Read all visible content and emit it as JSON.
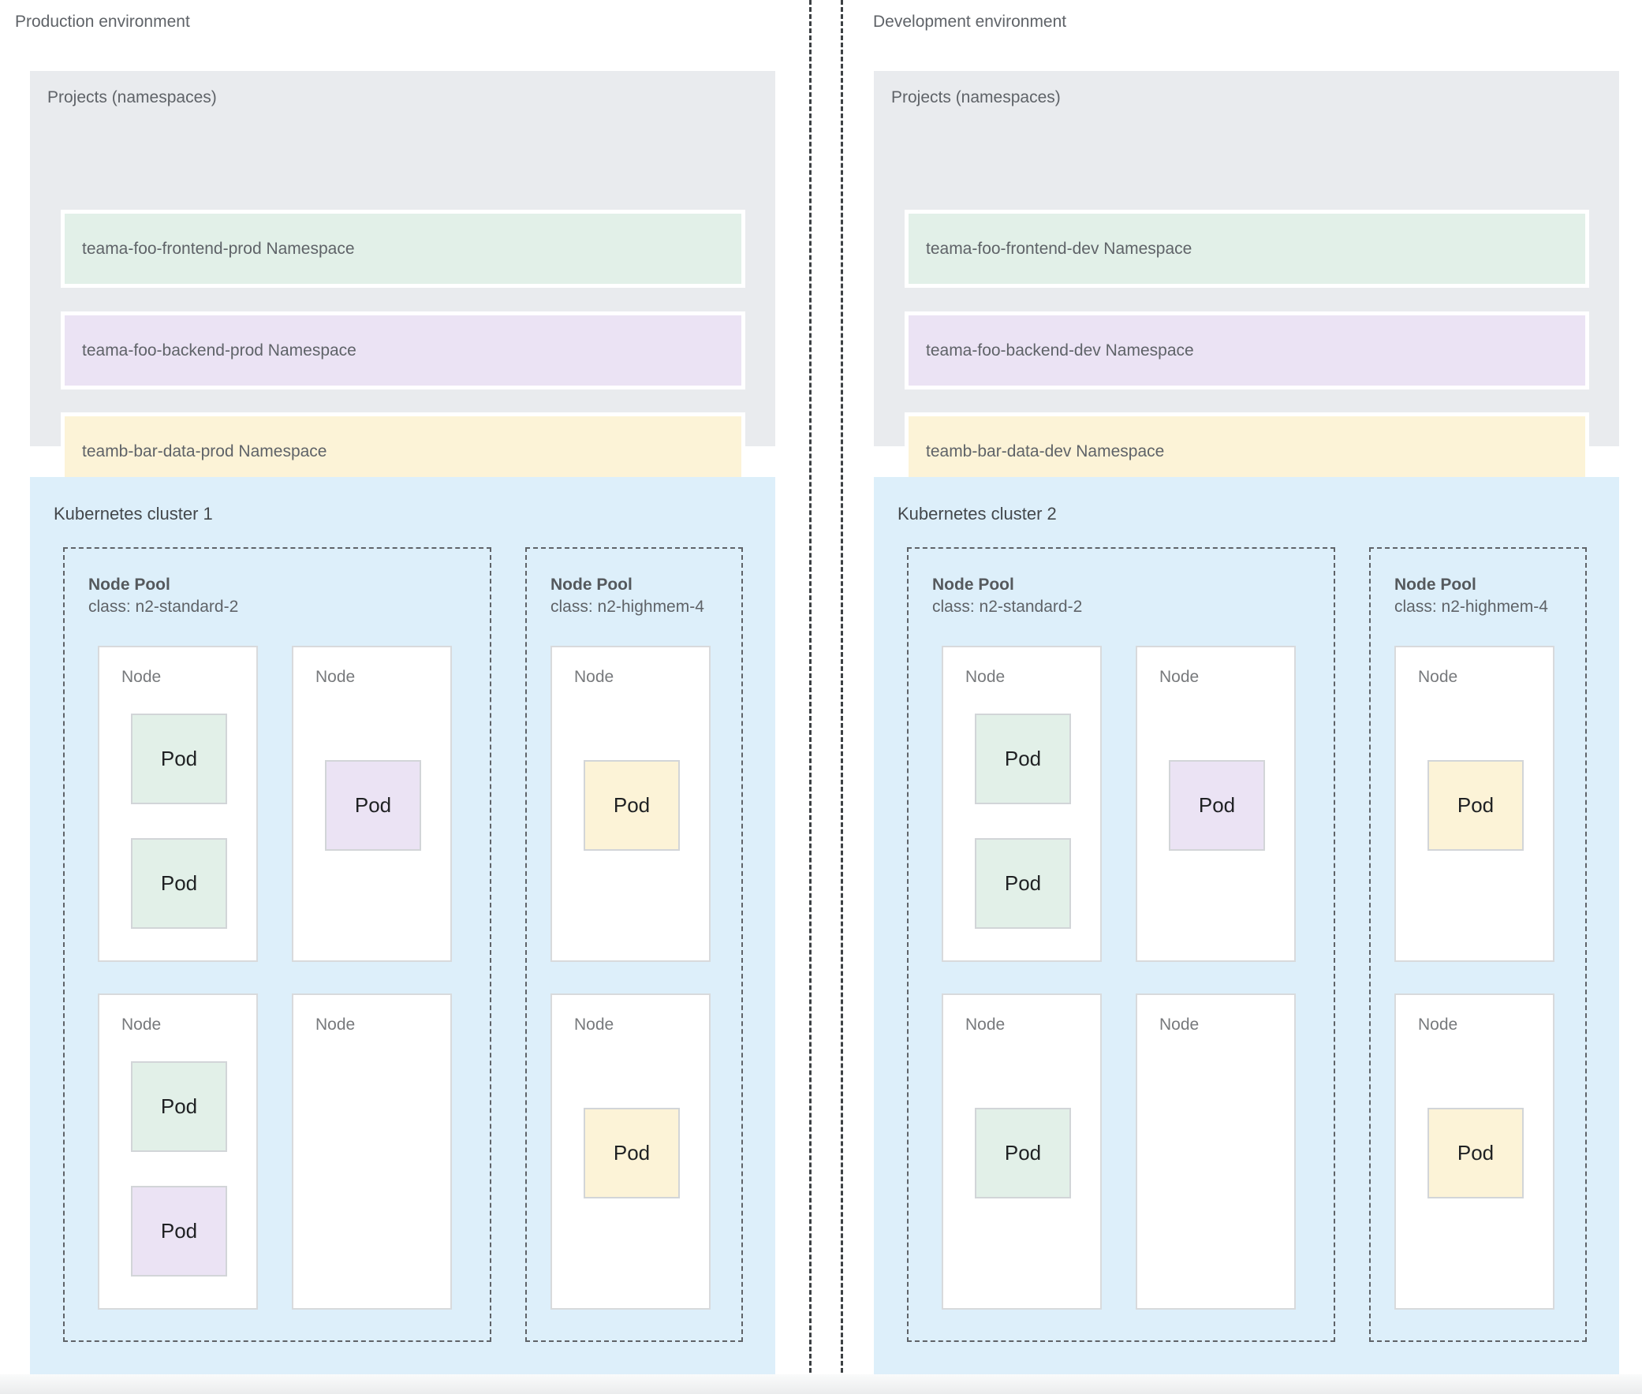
{
  "colors": {
    "projects_box_bg": "#e9ebee",
    "cluster_box_bg": "#ddeffa",
    "green": "#e2f0e8",
    "purple": "#ebe3f4",
    "yellow": "#fcf3d7",
    "node_bg": "#ffffff",
    "divider": "#3c4043"
  },
  "environments": [
    {
      "id": "production",
      "title": "Production environment",
      "projects": {
        "title": "Projects (namespaces)",
        "namespaces": [
          {
            "label": "teama-foo-frontend-prod Namespace",
            "color": "green"
          },
          {
            "label": "teama-foo-backend-prod Namespace",
            "color": "purple"
          },
          {
            "label": "teamb-bar-data-prod Namespace",
            "color": "yellow"
          }
        ]
      },
      "cluster": {
        "title": "Kubernetes cluster 1",
        "node_pools": [
          {
            "title": "Node Pool",
            "machine_class": "class: n2-standard-2",
            "nodes": [
              {
                "label": "Node",
                "pods": [
                  {
                    "label": "Pod",
                    "color": "green"
                  },
                  {
                    "label": "Pod",
                    "color": "green"
                  }
                ]
              },
              {
                "label": "Node",
                "pods": [
                  {
                    "label": "Pod",
                    "color": "purple"
                  }
                ]
              },
              {
                "label": "Node",
                "pods": [
                  {
                    "label": "Pod",
                    "color": "green"
                  },
                  {
                    "label": "Pod",
                    "color": "purple"
                  }
                ]
              },
              {
                "label": "Node",
                "pods": []
              }
            ]
          },
          {
            "title": "Node Pool",
            "machine_class": "class: n2-highmem-4",
            "nodes": [
              {
                "label": "Node",
                "pods": [
                  {
                    "label": "Pod",
                    "color": "yellow"
                  }
                ]
              },
              {
                "label": "Node",
                "pods": [
                  {
                    "label": "Pod",
                    "color": "yellow"
                  }
                ]
              }
            ]
          }
        ]
      }
    },
    {
      "id": "development",
      "title": "Development environment",
      "projects": {
        "title": "Projects (namespaces)",
        "namespaces": [
          {
            "label": "teama-foo-frontend-dev Namespace",
            "color": "green"
          },
          {
            "label": "teama-foo-backend-dev Namespace",
            "color": "purple"
          },
          {
            "label": "teamb-bar-data-dev Namespace",
            "color": "yellow"
          }
        ]
      },
      "cluster": {
        "title": "Kubernetes cluster 2",
        "node_pools": [
          {
            "title": "Node Pool",
            "machine_class": "class: n2-standard-2",
            "nodes": [
              {
                "label": "Node",
                "pods": [
                  {
                    "label": "Pod",
                    "color": "green"
                  },
                  {
                    "label": "Pod",
                    "color": "green"
                  }
                ]
              },
              {
                "label": "Node",
                "pods": [
                  {
                    "label": "Pod",
                    "color": "purple"
                  }
                ]
              },
              {
                "label": "Node",
                "pods": [
                  {
                    "label": "Pod",
                    "color": "green"
                  }
                ]
              },
              {
                "label": "Node",
                "pods": []
              }
            ]
          },
          {
            "title": "Node Pool",
            "machine_class": "class: n2-highmem-4",
            "nodes": [
              {
                "label": "Node",
                "pods": [
                  {
                    "label": "Pod",
                    "color": "yellow"
                  }
                ]
              },
              {
                "label": "Node",
                "pods": [
                  {
                    "label": "Pod",
                    "color": "yellow"
                  }
                ]
              }
            ]
          }
        ]
      }
    }
  ]
}
